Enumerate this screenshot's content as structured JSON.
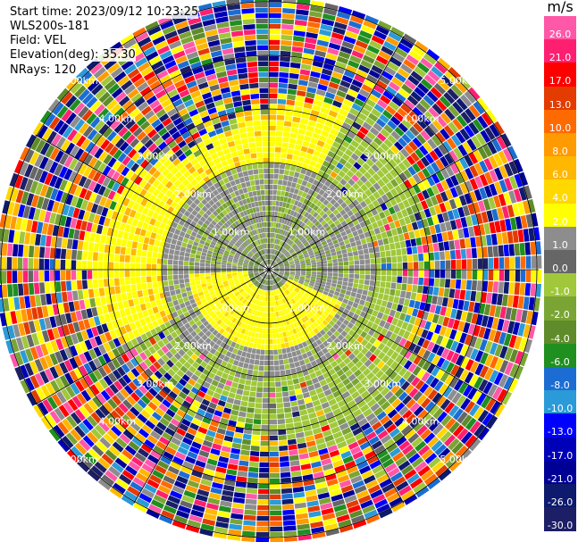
{
  "header": {
    "start_time": "Start time: 2023/09/12 10:23:25",
    "site": "WLS200s-181",
    "field": "Field: VEL",
    "elevation": "Elevation(deg): 35.30",
    "nrays": "NRays: 120"
  },
  "range_rings": {
    "labels": [
      "1.00km",
      "2.00km",
      "3.00km",
      "4.00km",
      "5.00km"
    ]
  },
  "colorbar": {
    "unit": "m/s",
    "ticks": [
      "26.0",
      "21.0",
      "17.0",
      "13.0",
      "10.0",
      "8.0",
      "6.0",
      "4.0",
      "2.0",
      "1.0",
      "0.0",
      "-1.0",
      "-2.0",
      "-4.0",
      "-6.0",
      "-8.0",
      "-10.0",
      "-13.0",
      "-17.0",
      "-21.0",
      "-26.0",
      "-30.0"
    ],
    "colors": [
      "#ff58a8",
      "#ff1f70",
      "#ff0000",
      "#e33b00",
      "#ff6a00",
      "#ff9a00",
      "#ffb700",
      "#ffd800",
      "#ffff00",
      "#8d8d8d",
      "#666666",
      "#a0c83a",
      "#7aa535",
      "#5f8c2a",
      "#1f8f1f",
      "#1c6dd3",
      "#2a9ad8",
      "#0000ff",
      "#0000b8",
      "#000095",
      "#0d1a6e",
      "#1d1f66"
    ]
  },
  "map_info": {
    "type": "PPI radar velocity display",
    "rays": 120,
    "background": "#ffffff"
  }
}
